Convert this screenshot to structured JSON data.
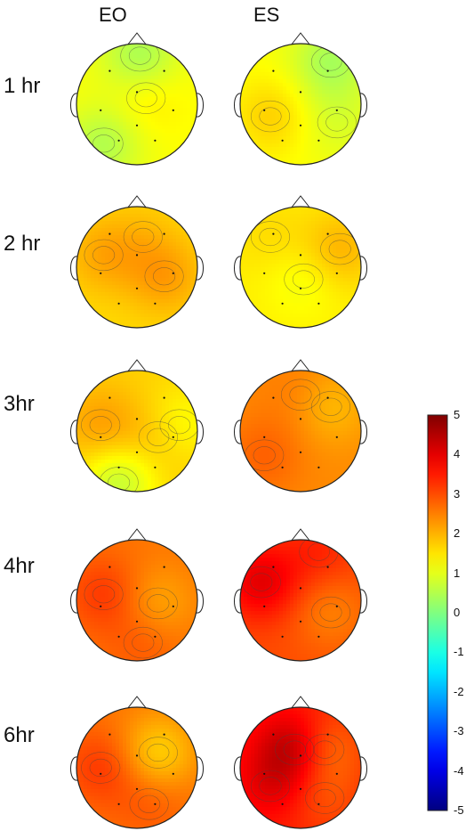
{
  "columns": [
    "EO",
    "ES"
  ],
  "rows": [
    "1 hr",
    "2 hr",
    "3hr",
    "4hr",
    "6hr"
  ],
  "colorbar": {
    "min": -5,
    "max": 5,
    "ticks": [
      "5",
      "4",
      "3",
      "2",
      "1",
      "0",
      "-1",
      "-2",
      "-3",
      "-4",
      "-5"
    ],
    "colormap": "jet"
  },
  "maps": [
    {
      "row": "1 hr",
      "condition": "EO",
      "base_value": 1.2,
      "blobs": [
        {
          "u": -0.55,
          "v": -0.65,
          "a": -0.7
        },
        {
          "u": 0.05,
          "v": 0.8,
          "a": -0.8
        },
        {
          "u": 0.15,
          "v": 0.1,
          "a": 0.3
        }
      ]
    },
    {
      "row": "1 hr",
      "condition": "ES",
      "base_value": 1.2,
      "blobs": [
        {
          "u": 0.5,
          "v": 0.7,
          "a": -0.8
        },
        {
          "u": -0.5,
          "v": -0.2,
          "a": 0.5
        },
        {
          "u": 0.6,
          "v": -0.3,
          "a": -0.3
        }
      ]
    },
    {
      "row": "2 hr",
      "condition": "EO",
      "base_value": 1.6,
      "blobs": [
        {
          "u": 0.45,
          "v": -0.15,
          "a": 0.6
        },
        {
          "u": -0.55,
          "v": 0.2,
          "a": 0.5
        },
        {
          "u": 0.1,
          "v": 0.5,
          "a": 0.2
        }
      ]
    },
    {
      "row": "2 hr",
      "condition": "ES",
      "base_value": 1.4,
      "blobs": [
        {
          "u": 0.05,
          "v": -0.2,
          "a": -0.3
        },
        {
          "u": 0.65,
          "v": 0.3,
          "a": 0.6
        },
        {
          "u": -0.5,
          "v": 0.5,
          "a": 0.2
        }
      ]
    },
    {
      "row": "3hr",
      "condition": "EO",
      "base_value": 1.7,
      "blobs": [
        {
          "u": -0.3,
          "v": -0.85,
          "a": -1.0
        },
        {
          "u": 0.7,
          "v": 0.1,
          "a": -0.6
        },
        {
          "u": -0.6,
          "v": 0.1,
          "a": 0.5
        },
        {
          "u": 0.35,
          "v": -0.1,
          "a": 0.4
        }
      ]
    },
    {
      "row": "3hr",
      "condition": "ES",
      "base_value": 2.4,
      "blobs": [
        {
          "u": 0.5,
          "v": 0.4,
          "a": -0.5
        },
        {
          "u": -0.6,
          "v": -0.4,
          "a": 0.4
        },
        {
          "u": 0.0,
          "v": 0.6,
          "a": 0.2
        }
      ]
    },
    {
      "row": "4hr",
      "condition": "EO",
      "base_value": 2.6,
      "blobs": [
        {
          "u": -0.55,
          "v": 0.1,
          "a": 0.6
        },
        {
          "u": 0.35,
          "v": -0.05,
          "a": -0.5
        },
        {
          "u": 0.1,
          "v": -0.7,
          "a": 0.3
        }
      ]
    },
    {
      "row": "4hr",
      "condition": "ES",
      "base_value": 3.0,
      "blobs": [
        {
          "u": -0.65,
          "v": 0.3,
          "a": 1.0
        },
        {
          "u": 0.5,
          "v": -0.2,
          "a": -0.5
        },
        {
          "u": 0.3,
          "v": 0.8,
          "a": 0.4
        }
      ]
    },
    {
      "row": "6hr",
      "condition": "EO",
      "base_value": 2.6,
      "blobs": [
        {
          "u": 0.35,
          "v": 0.25,
          "a": -0.9
        },
        {
          "u": -0.6,
          "v": 0.0,
          "a": 0.6
        },
        {
          "u": 0.2,
          "v": -0.6,
          "a": 0.3
        }
      ]
    },
    {
      "row": "6hr",
      "condition": "ES",
      "base_value": 3.4,
      "blobs": [
        {
          "u": -0.1,
          "v": 0.3,
          "a": 1.2
        },
        {
          "u": 0.4,
          "v": 0.3,
          "a": -0.9
        },
        {
          "u": -0.5,
          "v": -0.3,
          "a": 0.5
        },
        {
          "u": 0.4,
          "v": -0.5,
          "a": -0.4
        }
      ]
    }
  ]
}
